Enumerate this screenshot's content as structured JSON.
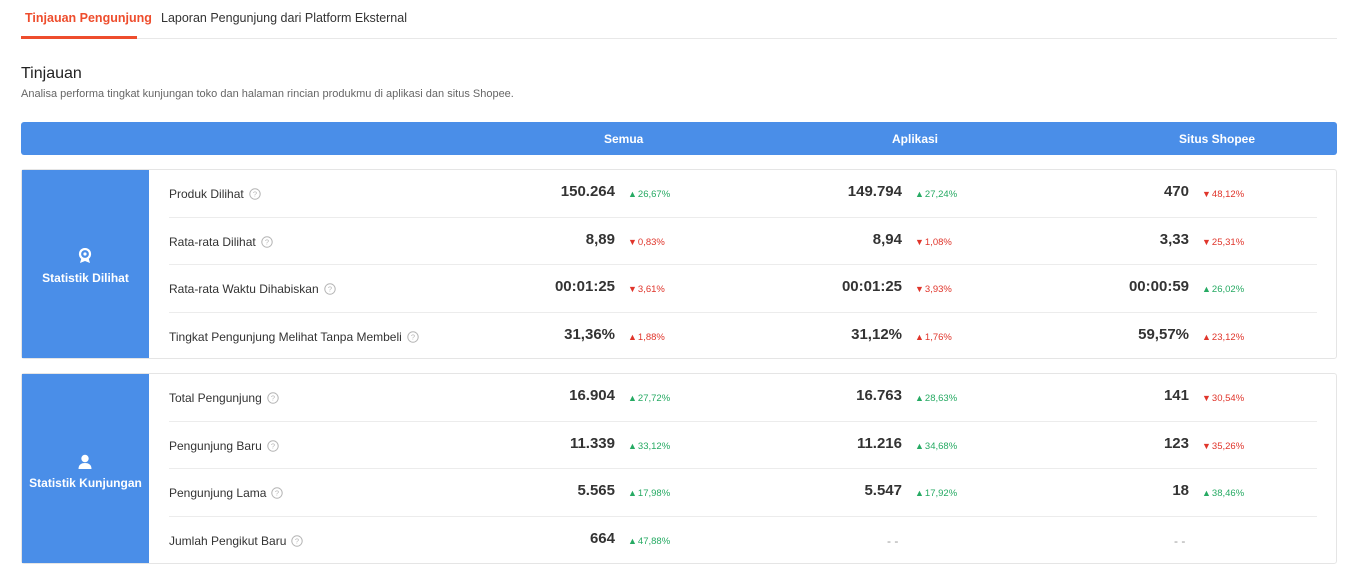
{
  "tabs": [
    "Tinjauan Pengunjung",
    "Laporan Pengunjung dari Platform Eksternal"
  ],
  "section": {
    "title": "Tinjauan",
    "subtitle": "Analisa performa tingkat kunjungan toko dan halaman rincian produkmu di aplikasi dan situs Shopee."
  },
  "columns": [
    "Semua",
    "Aplikasi",
    "Situs Shopee"
  ],
  "colors": {
    "accent": "#ee4d2d",
    "header": "#4a8ee8",
    "up": "#26aa63",
    "down": "#e0352b"
  },
  "groups": [
    {
      "name": "Statistik Dilihat",
      "icon": "badge-icon",
      "rows": [
        {
          "label": "Produk Dilihat",
          "cells": [
            {
              "value": "150.264",
              "change": "26,67%",
              "dir": "up"
            },
            {
              "value": "149.794",
              "change": "27,24%",
              "dir": "up"
            },
            {
              "value": "470",
              "change": "48,12%",
              "dir": "down"
            }
          ]
        },
        {
          "label": "Rata-rata Dilihat",
          "cells": [
            {
              "value": "8,89",
              "change": "0,83%",
              "dir": "down"
            },
            {
              "value": "8,94",
              "change": "1,08%",
              "dir": "down"
            },
            {
              "value": "3,33",
              "change": "25,31%",
              "dir": "down"
            }
          ]
        },
        {
          "label": "Rata-rata Waktu Dihabiskan",
          "cells": [
            {
              "value": "00:01:25",
              "change": "3,61%",
              "dir": "down"
            },
            {
              "value": "00:01:25",
              "change": "3,93%",
              "dir": "down"
            },
            {
              "value": "00:00:59",
              "change": "26,02%",
              "dir": "up"
            }
          ]
        },
        {
          "label": "Tingkat Pengunjung Melihat Tanpa Membeli",
          "cells": [
            {
              "value": "31,36%",
              "change": "1,88%",
              "dir": "up-red"
            },
            {
              "value": "31,12%",
              "change": "1,76%",
              "dir": "up-red"
            },
            {
              "value": "59,57%",
              "change": "23,12%",
              "dir": "up-red"
            }
          ]
        }
      ]
    },
    {
      "name": "Statistik Kunjungan",
      "icon": "user-icon",
      "rows": [
        {
          "label": "Total Pengunjung",
          "cells": [
            {
              "value": "16.904",
              "change": "27,72%",
              "dir": "up"
            },
            {
              "value": "16.763",
              "change": "28,63%",
              "dir": "up"
            },
            {
              "value": "141",
              "change": "30,54%",
              "dir": "down"
            }
          ]
        },
        {
          "label": "Pengunjung Baru",
          "cells": [
            {
              "value": "11.339",
              "change": "33,12%",
              "dir": "up"
            },
            {
              "value": "11.216",
              "change": "34,68%",
              "dir": "up"
            },
            {
              "value": "123",
              "change": "35,26%",
              "dir": "down"
            }
          ]
        },
        {
          "label": "Pengunjung Lama",
          "cells": [
            {
              "value": "5.565",
              "change": "17,98%",
              "dir": "up"
            },
            {
              "value": "5.547",
              "change": "17,92%",
              "dir": "up"
            },
            {
              "value": "18",
              "change": "38,46%",
              "dir": "up"
            }
          ]
        },
        {
          "label": "Jumlah Pengikut Baru",
          "cells": [
            {
              "value": "664",
              "change": "47,88%",
              "dir": "up"
            },
            {
              "value": "",
              "change": "",
              "dir": "none",
              "placeholder": "- -"
            },
            {
              "value": "",
              "change": "",
              "dir": "none",
              "placeholder": "- -"
            }
          ]
        }
      ]
    }
  ]
}
